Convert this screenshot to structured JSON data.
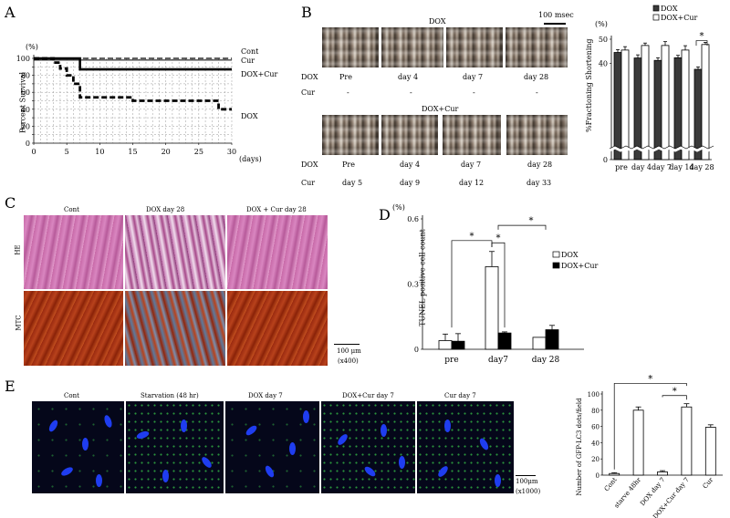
{
  "panels": {
    "A": {
      "letter": "A",
      "y_unit": "(%)",
      "y_label": "Percent Survival",
      "x_unit": "(days)",
      "series_labels": {
        "cont": "Cont",
        "cur": "Cur",
        "doxcur": "DOX+Cur",
        "dox": "DOX"
      }
    },
    "B": {
      "letter": "B",
      "scale_bar": "100 msec",
      "dox_title": "DOX",
      "doxcur_title": "DOX+Cur",
      "row_dox_label": "DOX",
      "row_cur_label": "Cur",
      "dox_top_days": [
        "Pre",
        "day 4",
        "day 7",
        "day 28"
      ],
      "cur_top_days": [
        "-",
        "-",
        "-",
        "-"
      ],
      "dox_bottom_days": [
        "Pre",
        "day 4",
        "day 7",
        "day 28"
      ],
      "cur_bottom_days": [
        "day 5",
        "day 9",
        "day 12",
        "day 33"
      ]
    },
    "C": {
      "letter": "C",
      "columns": [
        "Cont",
        "DOX   day 28",
        "DOX + Cur  day 28"
      ],
      "rows": [
        "HE",
        "MTC"
      ],
      "scale_bar": "100 μm",
      "magnification": "(x400)"
    },
    "D": {
      "letter": "D",
      "y_unit": "(%)",
      "y_label": "TUNEL positive cell count",
      "sig": "*"
    },
    "E": {
      "letter": "E",
      "columns": [
        "Cont",
        "Starvation (48 hr)",
        "DOX day 7",
        "DOX+Cur day 7",
        "Cur day 7"
      ],
      "scale_bar": "100μm",
      "magnification": "(x1000)",
      "y_label": "Number of GFP-LC3 dots/field",
      "sig": "*"
    }
  },
  "chart_data": [
    {
      "id": "A",
      "type": "line",
      "ylabel": "Percent Survival",
      "xlabel": "(days)",
      "xlim": [
        0,
        30
      ],
      "ylim": [
        0,
        100
      ],
      "xticks": [
        0,
        5,
        10,
        15,
        20,
        25,
        30
      ],
      "yticks": [
        0,
        10,
        20,
        30,
        40,
        50,
        60,
        70,
        80,
        90,
        100
      ],
      "grid": true,
      "series": [
        {
          "name": "Cont",
          "style": "dashed-thin",
          "x": [
            0,
            30
          ],
          "y": [
            100,
            100
          ]
        },
        {
          "name": "Cur",
          "style": "solid-thin",
          "x": [
            0,
            30
          ],
          "y": [
            100,
            100
          ]
        },
        {
          "name": "DOX+Cur",
          "style": "solid-thick",
          "x": [
            0,
            7,
            7,
            30
          ],
          "y": [
            100,
            100,
            87,
            87
          ]
        },
        {
          "name": "DOX",
          "style": "dashed-thick",
          "x": [
            0,
            3,
            3,
            4,
            4,
            5,
            5,
            6,
            6,
            7,
            7,
            15,
            15,
            28,
            28,
            30
          ],
          "y": [
            100,
            100,
            95,
            95,
            88,
            88,
            80,
            80,
            70,
            70,
            54,
            54,
            50,
            50,
            40,
            40
          ]
        }
      ]
    },
    {
      "id": "B",
      "type": "bar",
      "ylabel": "%Fractioning Shortening",
      "y_unit": "(%)",
      "ylim": [
        0,
        50
      ],
      "yticks": [
        0,
        40,
        50
      ],
      "categories": [
        "pre",
        "day 4",
        "day 7",
        "day 14",
        "day 28"
      ],
      "legend": "top-right",
      "series": [
        {
          "name": "DOX",
          "color": "#3a3a3a",
          "values": [
            44.5,
            42.2,
            41.2,
            42.3,
            37.5
          ],
          "errors": [
            1.2,
            1.3,
            1.1,
            1.0,
            1.0
          ]
        },
        {
          "name": "DOX+Cur",
          "color": "#ffffff",
          "values": [
            45.5,
            47.4,
            47.4,
            45.5,
            47.8
          ],
          "errors": [
            1.4,
            1.0,
            1.6,
            1.8,
            0.9
          ]
        }
      ],
      "significance": [
        {
          "between": [
            "DOX",
            "DOX+Cur"
          ],
          "category": "day 28",
          "label": "*"
        }
      ]
    },
    {
      "id": "D",
      "type": "bar",
      "ylabel": "TUNEL positive cell count",
      "y_unit": "(%)",
      "ylim": [
        0,
        0.6
      ],
      "yticks": [
        0,
        0.3,
        0.6
      ],
      "categories": [
        "pre",
        "day7",
        "day 28"
      ],
      "legend": "right",
      "series": [
        {
          "name": "DOX",
          "color": "#ffffff",
          "values": [
            0.04,
            0.38,
            0.055
          ],
          "errors": [
            0.03,
            0.07,
            0.0
          ]
        },
        {
          "name": "DOX+Cur",
          "color": "#000000",
          "values": [
            0.037,
            0.075,
            0.09
          ],
          "errors": [
            0.035,
            0.005,
            0.02
          ]
        }
      ],
      "significance": [
        {
          "from": "pre",
          "to": "day7",
          "label": "*"
        },
        {
          "from": "day7 DOX",
          "to": "day7 DOX+Cur",
          "label": "*"
        },
        {
          "from": "day7",
          "to": "day 28",
          "label": "*"
        }
      ]
    },
    {
      "id": "E",
      "type": "bar",
      "ylabel": "Number of GFP-LC3 dots/field",
      "ylim": [
        0,
        100
      ],
      "yticks": [
        0,
        20,
        40,
        60,
        80,
        100
      ],
      "categories": [
        "Cont",
        "starve 48hr",
        "DOX day 7",
        "DOX+Cur day 7",
        "Cur"
      ],
      "series": [
        {
          "name": "",
          "color": "#ffffff",
          "values": [
            2,
            80,
            4,
            84,
            59
          ],
          "errors": [
            1,
            4,
            1.5,
            4,
            3
          ]
        }
      ],
      "significance": [
        {
          "from": "Cont",
          "to": "DOX+Cur day 7",
          "label": "*"
        },
        {
          "from": "DOX day 7",
          "to": "DOX+Cur day 7",
          "label": "*"
        }
      ]
    }
  ]
}
